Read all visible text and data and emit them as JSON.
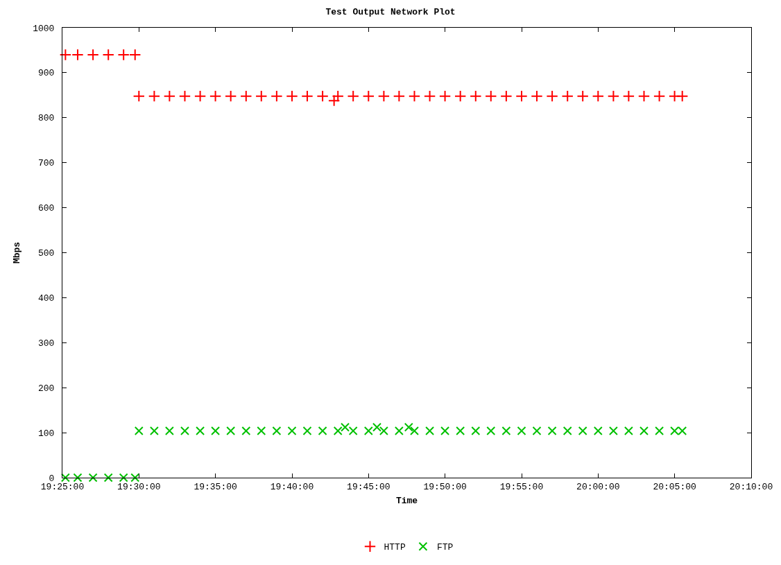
{
  "chart_data": {
    "type": "scatter",
    "title": "Test Output Network Plot",
    "xlabel": "Time",
    "ylabel": "Mbps",
    "x": [
      19.42,
      19.4333,
      19.45,
      19.4667,
      19.4833,
      19.4958,
      19.5,
      19.5167,
      19.5333,
      19.55,
      19.5667,
      19.5833,
      19.6,
      19.6167,
      19.6333,
      19.65,
      19.6667,
      19.6833,
      19.7,
      19.7125,
      19.7167,
      19.7245,
      19.7333,
      19.75,
      19.7592,
      19.7667,
      19.7833,
      19.7938,
      19.8,
      19.8167,
      19.8333,
      19.85,
      19.8667,
      19.8833,
      19.9,
      19.9167,
      19.9333,
      19.95,
      19.9667,
      19.9833,
      20,
      20.0167,
      20.0333,
      20.05,
      20.0667,
      20.0833,
      20.0917
    ],
    "series": [
      {
        "name": "HTTP",
        "color": "#ff0000",
        "marker": "cross",
        "values": [
          940,
          940,
          940,
          940,
          940,
          940,
          848,
          848,
          848,
          848,
          848,
          848,
          848,
          848,
          848,
          848,
          848,
          848,
          848,
          838,
          848,
          null,
          848,
          848,
          null,
          848,
          848,
          null,
          848,
          848,
          848,
          848,
          848,
          848,
          848,
          848,
          848,
          848,
          848,
          848,
          848,
          848,
          848,
          848,
          848,
          848,
          848
        ]
      },
      {
        "name": "FTP",
        "color": "#00c000",
        "marker": "x",
        "values": [
          0,
          0,
          0,
          0,
          0,
          0,
          104,
          104,
          104,
          104,
          104,
          104,
          104,
          104,
          104,
          104,
          104,
          104,
          104,
          null,
          104,
          112,
          104,
          104,
          112,
          104,
          104,
          112,
          104,
          104,
          104,
          104,
          104,
          104,
          104,
          104,
          104,
          104,
          104,
          104,
          104,
          104,
          104,
          104,
          104,
          104,
          104
        ]
      }
    ],
    "xlim": [
      19.4167,
      20.1667
    ],
    "xticks": [
      {
        "value": 19.4167,
        "label": "19:25:00"
      },
      {
        "value": 19.5,
        "label": "19:30:00"
      },
      {
        "value": 19.5833,
        "label": "19:35:00"
      },
      {
        "value": 19.6667,
        "label": "19:40:00"
      },
      {
        "value": 19.75,
        "label": "19:45:00"
      },
      {
        "value": 19.8333,
        "label": "19:50:00"
      },
      {
        "value": 19.9167,
        "label": "19:55:00"
      },
      {
        "value": 20,
        "label": "20:00:00"
      },
      {
        "value": 20.0833,
        "label": "20:05:00"
      },
      {
        "value": 20.1667,
        "label": "20:10:00"
      }
    ],
    "ylim": [
      0,
      1000
    ],
    "yticks": [
      0,
      100,
      200,
      300,
      400,
      500,
      600,
      700,
      800,
      900,
      1000
    ],
    "grid": false,
    "legend": "bottom"
  }
}
